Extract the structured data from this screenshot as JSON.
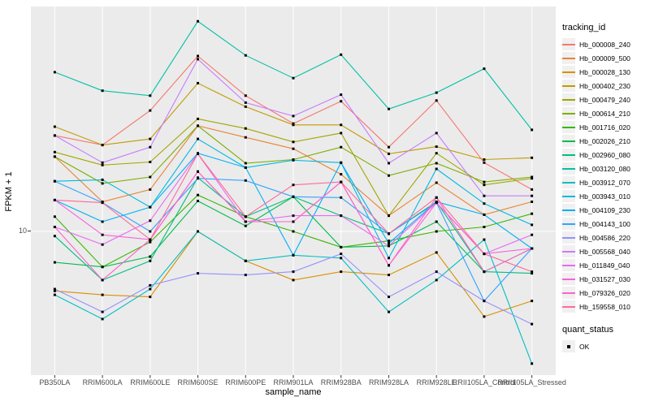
{
  "chart_data": {
    "type": "line",
    "title": "",
    "xlabel": "sample_name",
    "ylabel": "FPKM + 1",
    "y_scale": "log10",
    "y_ticks": [
      {
        "value": 10,
        "label": "10"
      }
    ],
    "ylim": [
      2.8,
      73
    ],
    "grid": "ggplot: white gridlines on grey panel, vertical line per category, horizontal at y=10",
    "panel_bg": "#EBEBEB",
    "gridline_color": "#FFFFFF",
    "axis_text_color": "#4D4D4D",
    "legend_position": "right",
    "legend_title": "tracking_id",
    "point_marker": "filled-black-square",
    "quant_status_legend": {
      "title": "quant_status",
      "items": [
        "OK"
      ]
    },
    "categories": [
      "PB350LA",
      "RRIM600LA",
      "RRIM600LE",
      "RRIM600SE",
      "RRIM600PE",
      "RRIM901LA",
      "RRIM928BA",
      "RRIM928LA",
      "RRIM928LE",
      "RRII105LA_Control",
      "RRII105LA_Stressed"
    ],
    "series": [
      {
        "name": "Hb_000008_240",
        "color": "#F8766D",
        "values": [
          23.4,
          21.5,
          29.2,
          47.3,
          33.3,
          26.0,
          31.7,
          21.1,
          31.9,
          18.4,
          14.5
        ]
      },
      {
        "name": "Hb_000009_500",
        "color": "#EA8331",
        "values": [
          19.4,
          13.0,
          14.5,
          25.5,
          23.0,
          20.8,
          16.6,
          11.5,
          15.4,
          11.6,
          13.0
        ]
      },
      {
        "name": "Hb_000028_130",
        "color": "#D89000",
        "values": [
          5.9,
          5.7,
          5.6,
          10.0,
          7.7,
          6.5,
          7.0,
          6.8,
          8.3,
          4.7,
          5.4
        ]
      },
      {
        "name": "Hb_000402_230",
        "color": "#C09B00",
        "values": [
          25.3,
          21.5,
          22.7,
          37.2,
          30.2,
          25.7,
          25.7,
          19.9,
          21.2,
          18.9,
          19.2
        ]
      },
      {
        "name": "Hb_000479_240",
        "color": "#A3A500",
        "values": [
          20.2,
          18.0,
          18.5,
          27.1,
          24.9,
          22.1,
          23.9,
          11.5,
          20.0,
          15.1,
          16.0
        ]
      },
      {
        "name": "Hb_000614_210",
        "color": "#7CAE00",
        "values": [
          19.4,
          15.3,
          16.2,
          25.5,
          18.3,
          18.9,
          21.1,
          16.4,
          18.3,
          15.5,
          16.2
        ]
      },
      {
        "name": "Hb_001716_020",
        "color": "#39B600",
        "values": [
          11.4,
          7.3,
          9.1,
          13.8,
          11.4,
          10.0,
          8.7,
          9.2,
          10.0,
          10.4,
          11.7
        ]
      },
      {
        "name": "Hb_002026_210",
        "color": "#00BB4E",
        "values": [
          7.6,
          7.3,
          8.0,
          13.1,
          10.5,
          13.6,
          8.7,
          8.8,
          10.9,
          7.0,
          8.6
        ]
      },
      {
        "name": "Hb_002960_080",
        "color": "#00BF7D",
        "values": [
          9.6,
          6.5,
          7.7,
          16.1,
          11.4,
          13.6,
          11.5,
          9.8,
          13.0,
          7.0,
          6.9
        ]
      },
      {
        "name": "Hb_003120_080",
        "color": "#00C1A3",
        "values": [
          41.0,
          34.8,
          33.3,
          64.4,
          47.6,
          38.9,
          47.9,
          29.6,
          34.2,
          42.3,
          24.6
        ]
      },
      {
        "name": "Hb_003912_070",
        "color": "#00BFC4",
        "values": [
          5.7,
          4.6,
          6.0,
          10.0,
          7.7,
          8.1,
          7.9,
          4.9,
          6.5,
          9.3,
          3.1
        ]
      },
      {
        "name": "Hb_003943_010",
        "color": "#00BAE0",
        "values": [
          15.6,
          15.8,
          12.4,
          22.7,
          17.6,
          18.8,
          18.4,
          7.9,
          17.4,
          12.8,
          10.6
        ]
      },
      {
        "name": "Hb_004109_230",
        "color": "#00B0F6",
        "values": [
          13.2,
          10.9,
          12.4,
          20.0,
          17.6,
          8.1,
          18.4,
          9.0,
          13.0,
          11.6,
          8.6
        ]
      },
      {
        "name": "Hb_004143_100",
        "color": "#35A2FF",
        "values": [
          15.6,
          12.9,
          10.0,
          16.0,
          15.7,
          13.6,
          13.5,
          9.8,
          12.9,
          5.4,
          8.6
        ]
      },
      {
        "name": "Hb_004586_220",
        "color": "#9590FF",
        "values": [
          6.0,
          4.9,
          6.2,
          6.9,
          6.8,
          7.0,
          8.2,
          5.6,
          7.0,
          5.4,
          4.4
        ]
      },
      {
        "name": "Hb_005568_040",
        "color": "#C77CFF",
        "values": [
          23.4,
          18.4,
          21.1,
          46.0,
          31.3,
          27.8,
          33.6,
          18.3,
          23.9,
          13.7,
          13.7
        ]
      },
      {
        "name": "Hb_011849_040",
        "color": "#E76BF3",
        "values": [
          10.4,
          8.9,
          11.0,
          19.9,
          10.9,
          11.5,
          11.5,
          8.8,
          12.9,
          8.2,
          9.7
        ]
      },
      {
        "name": "Hb_031527_030",
        "color": "#FA62DB",
        "values": [
          13.2,
          9.7,
          9.3,
          17.0,
          10.9,
          10.9,
          15.5,
          7.4,
          12.9,
          8.2,
          8.6
        ]
      },
      {
        "name": "Hb_079326_020",
        "color": "#FF61CC",
        "values": [
          10.4,
          6.5,
          9.3,
          17.0,
          10.9,
          10.9,
          15.5,
          7.4,
          13.5,
          7.0,
          8.6
        ]
      },
      {
        "name": "Hb_159558_010",
        "color": "#FF6A98",
        "values": [
          13.2,
          12.9,
          9.3,
          19.9,
          11.4,
          15.1,
          15.5,
          9.8,
          13.5,
          8.2,
          7.0
        ]
      }
    ]
  }
}
